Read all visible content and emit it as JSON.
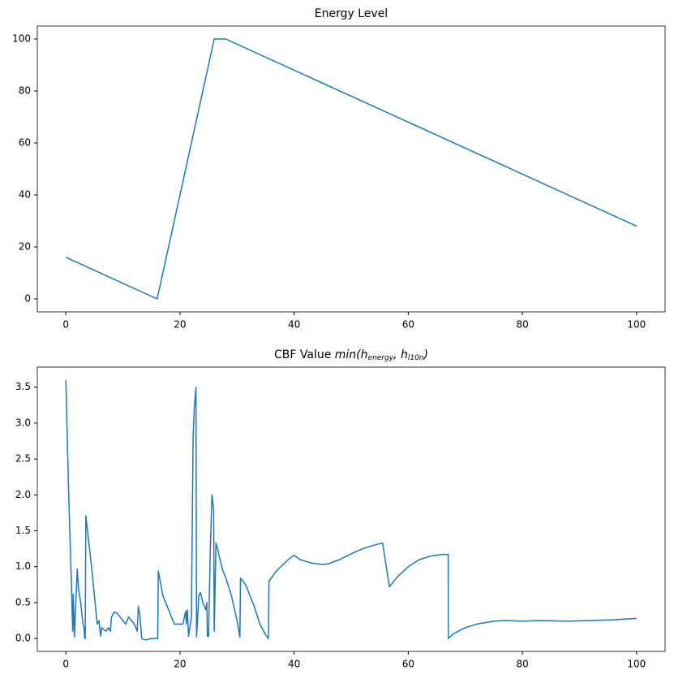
{
  "chart_data": [
    {
      "type": "line",
      "title": "Energy Level",
      "color": "#1f77b4",
      "x": [
        0,
        16,
        26,
        28,
        100
      ],
      "values": [
        16,
        0,
        100,
        100,
        28
      ],
      "xlim": [
        -5,
        105
      ],
      "xticks": [
        0,
        20,
        40,
        60,
        80,
        100
      ],
      "ylim": [
        -5,
        105
      ],
      "yticks": [
        0,
        20,
        40,
        60,
        80,
        100
      ]
    },
    {
      "type": "line",
      "title": "CBF Value",
      "title_math": [
        {
          "text": "min(h",
          "sub": "energy"
        },
        {
          "text": ", h",
          "sub": "l10n"
        },
        {
          "text": ")"
        }
      ],
      "color": "#1f77b4",
      "x": [
        0,
        0.5,
        1.0,
        1.2,
        1.3,
        1.5,
        2.0,
        2.2,
        2.6,
        3.0,
        3.2,
        3.3,
        3.4,
        3.5,
        4.5,
        5.5,
        5.8,
        6.1,
        6.3,
        7,
        7.5,
        7.8,
        8,
        8.5,
        9,
        10,
        10.5,
        11,
        12,
        12.5,
        12.7,
        13,
        13.3,
        14,
        15,
        16.1,
        16.2,
        17,
        18,
        19,
        20,
        20.5,
        21,
        21.1,
        21.3,
        21.5,
        22,
        22.3,
        22.5,
        22.8,
        22.9,
        23.3,
        23.6,
        24,
        24.5,
        24.7,
        24.8,
        25,
        25.3,
        25.6,
        25.9,
        26,
        26.3,
        26.6,
        27,
        27.5,
        28,
        29,
        30,
        30.5,
        30.6,
        31,
        31.5,
        32,
        33,
        34,
        35,
        35.5,
        35.6,
        37,
        39,
        40,
        41,
        43,
        45,
        46,
        48,
        50,
        52,
        54,
        55.5,
        56.7,
        58,
        60,
        62,
        64,
        66,
        67,
        67.01,
        68,
        70,
        72,
        75,
        77,
        80,
        83,
        88,
        92,
        96,
        100
      ],
      "values": [
        3.6,
        2.0,
        0.7,
        0.1,
        0.62,
        0.02,
        0.97,
        0.7,
        0.5,
        0.2,
        0.15,
        0.0,
        0.0,
        1.71,
        1.0,
        0.2,
        0.25,
        0.03,
        0.15,
        0.1,
        0.15,
        0.1,
        0.3,
        0.37,
        0.35,
        0.25,
        0.2,
        0.3,
        0.2,
        0.1,
        0.45,
        0.3,
        0.0,
        -0.02,
        0.0,
        0.0,
        0.94,
        0.6,
        0.4,
        0.2,
        0.2,
        0.2,
        0.38,
        0.2,
        0.4,
        0.03,
        0.3,
        2.8,
        3.2,
        3.5,
        0.02,
        0.6,
        0.64,
        0.5,
        0.4,
        0.5,
        0.03,
        0.03,
        1.2,
        2.0,
        1.8,
        0.1,
        1.33,
        1.25,
        1.1,
        0.95,
        0.85,
        0.6,
        0.25,
        0.02,
        0.84,
        0.8,
        0.75,
        0.65,
        0.45,
        0.2,
        0.05,
        0.0,
        0.8,
        0.95,
        1.1,
        1.16,
        1.1,
        1.05,
        1.03,
        1.04,
        1.1,
        1.18,
        1.25,
        1.3,
        1.33,
        0.72,
        0.85,
        1.0,
        1.1,
        1.15,
        1.17,
        1.17,
        0.0,
        0.07,
        0.15,
        0.2,
        0.24,
        0.25,
        0.24,
        0.25,
        0.24,
        0.25,
        0.26,
        0.28
      ],
      "xlim": [
        -5,
        105
      ],
      "xticks": [
        0,
        20,
        40,
        60,
        80,
        100
      ],
      "ylim": [
        -0.18,
        3.78
      ],
      "yticks": [
        {
          "value": 0,
          "label": "0.0"
        },
        0.5,
        {
          "value": 1,
          "label": "1.0"
        },
        1.5,
        {
          "value": 2,
          "label": "2.0"
        },
        2.5,
        {
          "value": 3,
          "label": "3.0"
        },
        3.5
      ]
    }
  ]
}
